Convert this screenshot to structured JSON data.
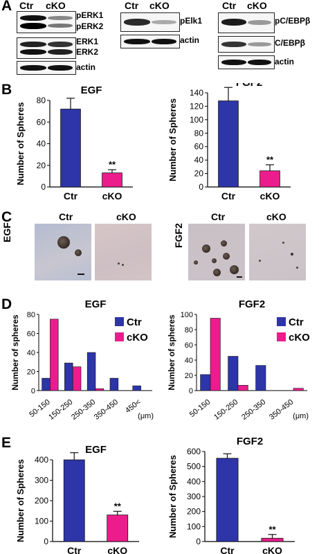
{
  "panels": {
    "a": "A",
    "b": "B",
    "c": "C",
    "d": "D",
    "e": "E"
  },
  "lanes": {
    "ctr": "Ctr",
    "cko": "cKO"
  },
  "blots": {
    "perk1": "pERK1",
    "perk2": "pERK2",
    "erk1": "ERK1",
    "erk2": "ERK2",
    "actin": "actin",
    "pelk1": "pElk1",
    "pcebp": "pC/EBPβ",
    "cebp": "C/EBPβ"
  },
  "units": {
    "um": "(μm)"
  },
  "colors": {
    "ctr": "#2e35a8",
    "cko": "#ec1c8c"
  },
  "chart_data": [
    {
      "id": "B-EGF",
      "type": "bar",
      "title": "EGF",
      "ylabel": "Number of Spheres",
      "categories": [
        "Ctr",
        "cKO"
      ],
      "values": [
        72,
        13
      ],
      "errors": [
        10,
        3
      ],
      "ylim": [
        0,
        80
      ],
      "yticks": [
        0,
        20,
        40,
        60,
        80
      ],
      "annotations": [
        "",
        "**"
      ]
    },
    {
      "id": "B-FGF2",
      "type": "bar",
      "title": "FGF2",
      "ylabel": "Number of Spheres",
      "categories": [
        "Ctr",
        "cKO"
      ],
      "values": [
        128,
        24
      ],
      "errors": [
        20,
        9
      ],
      "ylim": [
        0,
        140
      ],
      "yticks": [
        0,
        20,
        40,
        60,
        80,
        100,
        120,
        140
      ],
      "annotations": [
        "",
        "**"
      ]
    },
    {
      "id": "D-EGF",
      "type": "bar",
      "title": "EGF",
      "ylabel": "Number of spheres",
      "categories": [
        "50-150",
        "150-250",
        "250-350",
        "350-450",
        "450<"
      ],
      "series": [
        {
          "name": "Ctr",
          "values": [
            13,
            29,
            40,
            13,
            5
          ]
        },
        {
          "name": "cKO",
          "values": [
            75,
            25,
            2,
            0,
            0
          ]
        }
      ],
      "ylim": [
        0,
        80
      ],
      "yticks": [
        0,
        20,
        40,
        60,
        80
      ],
      "xunit": "(μm)",
      "legend": "right"
    },
    {
      "id": "D-FGF2",
      "type": "bar",
      "title": "FGF2",
      "ylabel": "Number of spheres",
      "categories": [
        "50-150",
        "150-250",
        "250-350",
        "350-450"
      ],
      "series": [
        {
          "name": "Ctr",
          "values": [
            21,
            45,
            33,
            0
          ]
        },
        {
          "name": "cKO",
          "values": [
            95,
            7,
            0,
            3
          ]
        }
      ],
      "ylim": [
        0,
        100
      ],
      "yticks": [
        0,
        20,
        40,
        60,
        80,
        100
      ],
      "xunit": "(μm)",
      "legend": "right"
    },
    {
      "id": "E-EGF",
      "type": "bar",
      "title": "EGF",
      "ylabel": "Number of Spheres",
      "categories": [
        "Ctr",
        "cKO"
      ],
      "values": [
        415,
        130
      ],
      "errors": [
        20,
        18
      ],
      "ylim": [
        0,
        400
      ],
      "yticks": [
        0,
        100,
        200,
        300,
        400
      ],
      "annotations": [
        "",
        "**"
      ]
    },
    {
      "id": "E-FGF2",
      "type": "bar",
      "title": "FGF2",
      "ylabel": "Number of Spheres",
      "categories": [
        "Ctr",
        "cKO"
      ],
      "values": [
        555,
        22
      ],
      "errors": [
        30,
        25
      ],
      "ylim": [
        0,
        600
      ],
      "yticks": [
        0,
        100,
        200,
        300,
        400,
        500,
        600
      ],
      "annotations": [
        "",
        "**"
      ]
    }
  ]
}
